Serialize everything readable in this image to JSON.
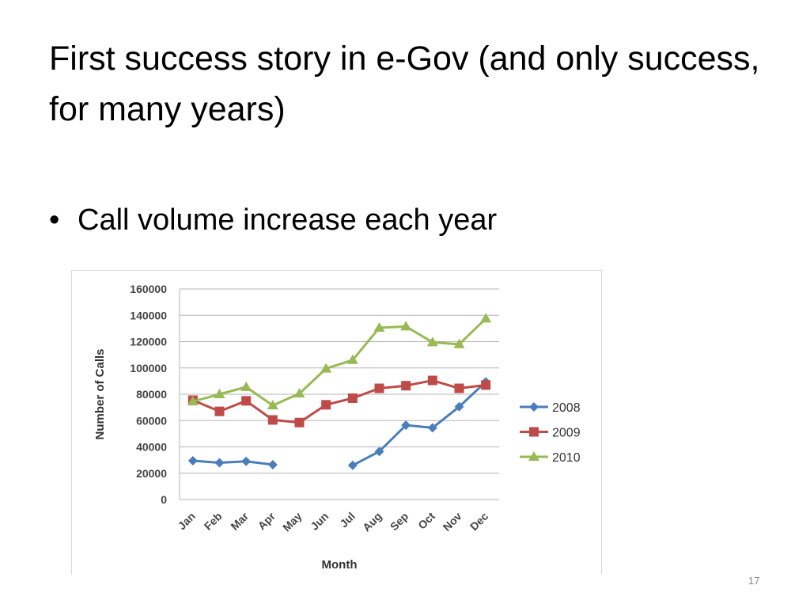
{
  "slide": {
    "title": "First success story in e-Gov (and only success, for many years)",
    "bullet": "Call volume increase each year",
    "page_number": "17"
  },
  "chart_data": {
    "type": "line",
    "categories": [
      "Jan",
      "Feb",
      "Mar",
      "Apr",
      "May",
      "Jun",
      "Jul",
      "Aug",
      "Sep",
      "Oct",
      "Nov",
      "Dec"
    ],
    "xlabel": "Month",
    "ylabel": "Number of Calls",
    "ylim": [
      0,
      160000
    ],
    "yticks": [
      0,
      20000,
      40000,
      60000,
      80000,
      100000,
      120000,
      140000,
      160000
    ],
    "grid": true,
    "legend": "right",
    "series": [
      {
        "name": "2008",
        "color": "#4a7ebb",
        "marker": "diamond",
        "values": [
          29500,
          28000,
          29000,
          26500,
          null,
          null,
          26000,
          36500,
          56500,
          54500,
          70500,
          89500
        ]
      },
      {
        "name": "2009",
        "color": "#be4b48",
        "marker": "square",
        "values": [
          75500,
          67000,
          75000,
          60500,
          58500,
          72000,
          77000,
          84500,
          86500,
          90500,
          84500,
          87000
        ]
      },
      {
        "name": "2010",
        "color": "#98b954",
        "marker": "triangle",
        "values": [
          74500,
          80000,
          85500,
          71500,
          80500,
          99500,
          106000,
          130500,
          131500,
          119500,
          118000,
          137500
        ]
      }
    ]
  }
}
